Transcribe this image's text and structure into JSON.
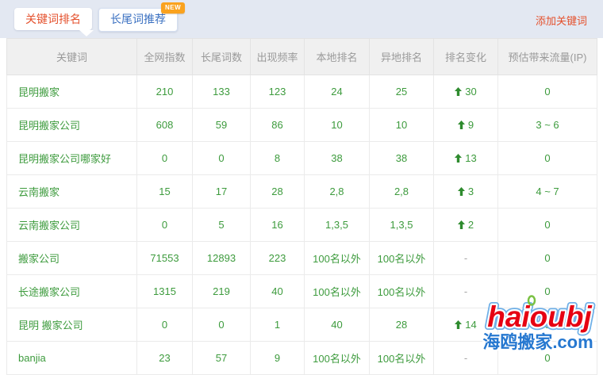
{
  "colors": {
    "accent-orange": "#e4502c",
    "accent-blue": "#3a70c1",
    "badge-orange": "#faa21e",
    "cell-green": "#3d9b3d",
    "arrow-green": "#2e8b2e",
    "topbar-bg": "#e3e8f2",
    "header-bg": "#f0f0f0",
    "header-text": "#9a9a9a",
    "border": "#ebebeb",
    "watermark-red": "#e60012",
    "watermark-blue": "#2678d0"
  },
  "tabs": [
    {
      "label": "关键词排名",
      "active": true
    },
    {
      "label": "长尾词推荐",
      "active": false,
      "badge": "NEW"
    }
  ],
  "add_keyword_link": "添加关键词",
  "table": {
    "headers": [
      "关键词",
      "全网指数",
      "长尾词数",
      "出现频率",
      "本地排名",
      "异地排名",
      "排名变化",
      "预估带来流量(IP)"
    ],
    "rows": [
      {
        "keyword": "昆明搬家",
        "index": "210",
        "longtail": "133",
        "freq": "123",
        "local": "24",
        "remote": "25",
        "change": "30",
        "change_dir": "up",
        "traffic": "0"
      },
      {
        "keyword": "昆明搬家公司",
        "index": "608",
        "longtail": "59",
        "freq": "86",
        "local": "10",
        "remote": "10",
        "change": "9",
        "change_dir": "up",
        "traffic": "3 ~ 6"
      },
      {
        "keyword": "昆明搬家公司哪家好",
        "index": "0",
        "longtail": "0",
        "freq": "8",
        "local": "38",
        "remote": "38",
        "change": "13",
        "change_dir": "up",
        "traffic": "0"
      },
      {
        "keyword": "云南搬家",
        "index": "15",
        "longtail": "17",
        "freq": "28",
        "local": "2,8",
        "remote": "2,8",
        "change": "3",
        "change_dir": "up",
        "traffic": "4 ~ 7"
      },
      {
        "keyword": "云南搬家公司",
        "index": "0",
        "longtail": "5",
        "freq": "16",
        "local": "1,3,5",
        "remote": "1,3,5",
        "change": "2",
        "change_dir": "up",
        "traffic": "0"
      },
      {
        "keyword": "搬家公司",
        "index": "71553",
        "longtail": "12893",
        "freq": "223",
        "local": "100名以外",
        "remote": "100名以外",
        "change": "-",
        "change_dir": "none",
        "traffic": "0"
      },
      {
        "keyword": "长途搬家公司",
        "index": "1315",
        "longtail": "219",
        "freq": "40",
        "local": "100名以外",
        "remote": "100名以外",
        "change": "-",
        "change_dir": "none",
        "traffic": "0"
      },
      {
        "keyword": "昆明 搬家公司",
        "index": "0",
        "longtail": "0",
        "freq": "1",
        "local": "40",
        "remote": "28",
        "change": "14",
        "change_dir": "up",
        "traffic": "0"
      },
      {
        "keyword": "banjia",
        "index": "23",
        "longtail": "57",
        "freq": "9",
        "local": "100名以外",
        "remote": "100名以外",
        "change": "-",
        "change_dir": "none",
        "traffic": "0"
      }
    ]
  },
  "watermark": {
    "title": "haioubj",
    "subtitle": "海鸥搬家.com"
  }
}
